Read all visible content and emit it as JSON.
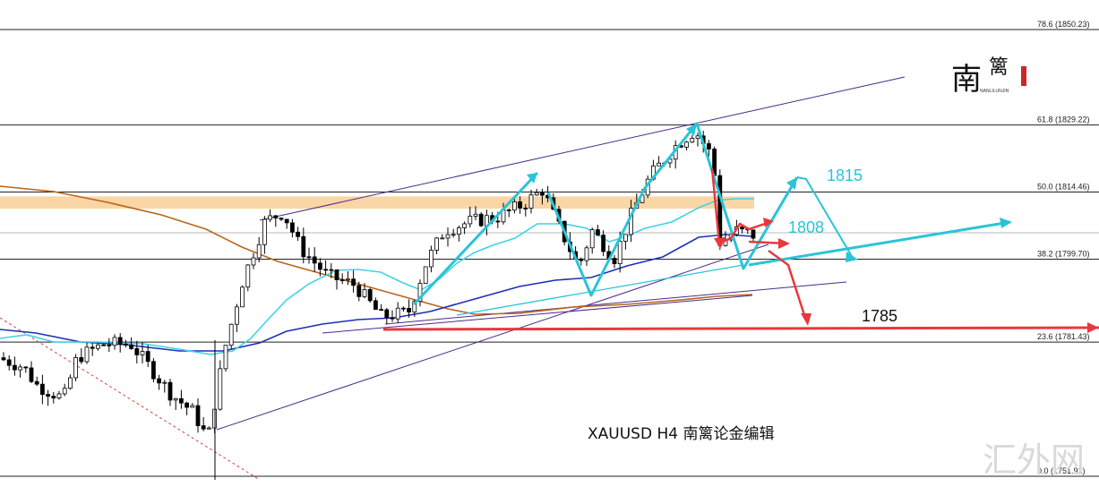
{
  "chart_data": {
    "type": "candlestick",
    "symbol": "XAUUSD",
    "timeframe": "H4",
    "caption": "XAUUSD  H4  南篱论金编辑",
    "price_range": [
      1751.91,
      1850.23
    ],
    "fib_levels": [
      {
        "label": "78.6 (1850.23)",
        "price": 1850.23
      },
      {
        "label": "61.8 (1829.22)",
        "price": 1829.22
      },
      {
        "label": "50.0 (1814.46)",
        "price": 1814.46
      },
      {
        "label": "38.2 (1799.70)",
        "price": 1799.7
      },
      {
        "label": "23.6 (1781.43)",
        "price": 1781.43
      },
      {
        "label": "0.0 (1751.91)",
        "price": 1751.91
      }
    ],
    "targets": [
      {
        "label": "1815",
        "price": 1815,
        "color": "#29c4d6"
      },
      {
        "label": "1808",
        "price": 1808,
        "color": "#29c4d6"
      },
      {
        "label": "1785",
        "price": 1785,
        "color": "#111111"
      }
    ],
    "resistance_zone": [
      1810.8,
      1813.5
    ],
    "colors": {
      "fib": "#222222",
      "zone": "#f9cf96",
      "ma_fast": "#3fd3e6",
      "ma_mid": "#1c2fb6",
      "ma_slow": "#b8651c",
      "arrow_blue": "#29c4d6",
      "arrow_red": "#e8383d",
      "channel": "#4a2a8a"
    }
  },
  "watermark": {
    "logo_char1": "南",
    "logo_char2": "篱",
    "logo_sub": "NANLILUNJIN",
    "corner": "汇外网"
  }
}
